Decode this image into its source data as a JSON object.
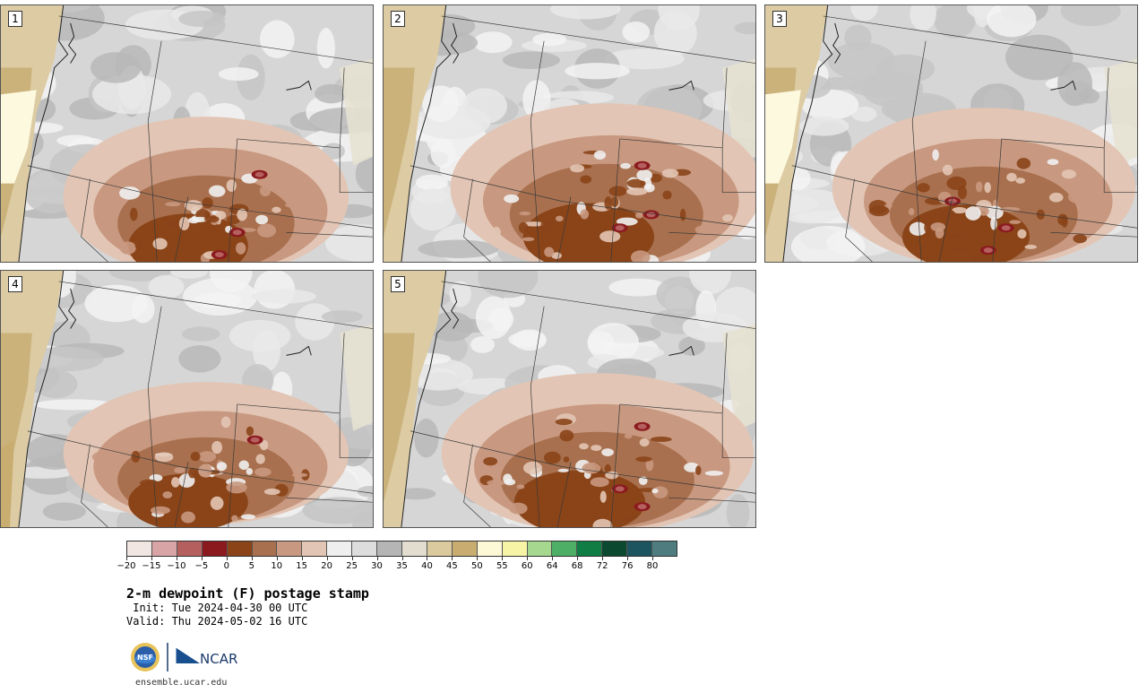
{
  "panels": [
    {
      "label": "1"
    },
    {
      "label": "2"
    },
    {
      "label": "3"
    },
    {
      "label": "4"
    },
    {
      "label": "5"
    }
  ],
  "colorbar": {
    "colors": [
      "#f2e6e3",
      "#d8a4a6",
      "#b5605f",
      "#8b1a1e",
      "#8a4418",
      "#a8704e",
      "#c89880",
      "#e2c5b4",
      "#efefef",
      "#dddddd",
      "#b5b5b5",
      "#e2ddcf",
      "#dcca9f",
      "#c9ad70",
      "#fdf8d6",
      "#f8f4a6",
      "#a6d88f",
      "#4daf65",
      "#107d45",
      "#0b4931",
      "#1c5560",
      "#4f7c7f"
    ],
    "tick_labels": [
      "−20",
      "−15",
      "−10",
      "−5",
      "0",
      "5",
      "10",
      "15",
      "20",
      "25",
      "30",
      "35",
      "40",
      "45",
      "50",
      "55",
      "60",
      "64",
      "68",
      "72",
      "76",
      "80"
    ]
  },
  "caption": {
    "title": "2-m dewpoint (F) postage stamp",
    "init": " Init: Tue 2024-04-30 00 UTC",
    "valid": "Valid: Thu 2024-05-02 16 UTC"
  },
  "logos": {
    "nsf": "NSF",
    "ncar": "NCAR"
  },
  "url": "ensemble.ucar.edu"
}
